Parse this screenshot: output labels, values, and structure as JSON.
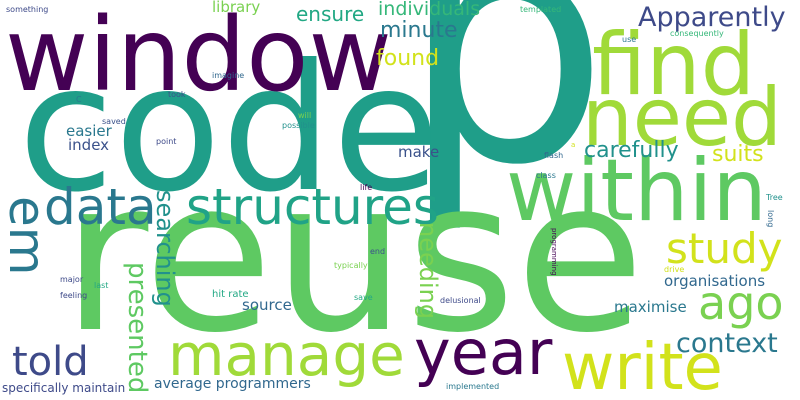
{
  "words": [
    {
      "text": "p",
      "color": "#1f9e89"
    },
    {
      "text": "code",
      "color": "#1f9e89"
    },
    {
      "text": "reuse",
      "color": "#5ec962"
    },
    {
      "text": "window",
      "color": "#440154"
    },
    {
      "text": "find",
      "color": "#a0da39"
    },
    {
      "text": "need",
      "color": "#a0da39"
    },
    {
      "text": "within",
      "color": "#5ec962"
    },
    {
      "text": "data",
      "color": "#2a788e"
    },
    {
      "text": "structures",
      "color": "#20a387"
    },
    {
      "text": "manage",
      "color": "#a0da39"
    },
    {
      "text": "year",
      "color": "#440154"
    },
    {
      "text": "write",
      "color": "#d2e21b"
    },
    {
      "text": "em",
      "color": "#2a788e"
    },
    {
      "text": "study",
      "color": "#d2e21b"
    },
    {
      "text": "ago",
      "color": "#7ad151"
    },
    {
      "text": "told",
      "color": "#3e4a89"
    },
    {
      "text": "Apparently",
      "color": "#3e4a89"
    },
    {
      "text": "context",
      "color": "#2a788e"
    },
    {
      "text": "carefully",
      "color": "#21918c"
    },
    {
      "text": "suits",
      "color": "#d2e21b"
    },
    {
      "text": "presented",
      "color": "#5ec962"
    },
    {
      "text": "searching",
      "color": "#21918c"
    },
    {
      "text": "needing",
      "color": "#7ad151"
    },
    {
      "text": "minute",
      "color": "#2a788e"
    },
    {
      "text": "found",
      "color": "#d2e21b"
    },
    {
      "text": "individuals",
      "color": "#35b779"
    },
    {
      "text": "ensure",
      "color": "#22a884"
    },
    {
      "text": "library",
      "color": "#7ad151"
    },
    {
      "text": "organisations",
      "color": "#31688e"
    },
    {
      "text": "maximise",
      "color": "#2a788e"
    },
    {
      "text": "source",
      "color": "#31688e"
    },
    {
      "text": "make",
      "color": "#3b528b"
    },
    {
      "text": "easier",
      "color": "#2a788e"
    },
    {
      "text": "index",
      "color": "#3b528b"
    },
    {
      "text": "average programmers",
      "color": "#31688e"
    },
    {
      "text": "specifically maintain",
      "color": "#3e4a89"
    },
    {
      "text": "hit rate",
      "color": "#22a884"
    },
    {
      "text": "delusional",
      "color": "#3e4a89"
    },
    {
      "text": "implemented",
      "color": "#2a788e"
    },
    {
      "text": "something",
      "color": "#3e4a89"
    },
    {
      "text": "templated",
      "color": "#35b779"
    },
    {
      "text": "consequently",
      "color": "#35b779"
    },
    {
      "text": "use",
      "color": "#2a788e"
    },
    {
      "text": "imagine",
      "color": "#31688e"
    },
    {
      "text": "took",
      "color": "#3b528b"
    },
    {
      "text": "saved",
      "color": "#3b528b"
    },
    {
      "text": "point",
      "color": "#3e4a89"
    },
    {
      "text": "will",
      "color": "#7ad151"
    },
    {
      "text": "possible",
      "color": "#21918c"
    },
    {
      "text": "flash",
      "color": "#31688e"
    },
    {
      "text": "class",
      "color": "#2a788e"
    },
    {
      "text": "Tree",
      "color": "#21918c"
    },
    {
      "text": "long",
      "color": "#31688e"
    },
    {
      "text": "life",
      "color": "#440154"
    },
    {
      "text": "end",
      "color": "#3b528b"
    },
    {
      "text": "typically",
      "color": "#7ad151"
    },
    {
      "text": "major",
      "color": "#3e4a89"
    },
    {
      "text": "last",
      "color": "#22a884"
    },
    {
      "text": "save",
      "color": "#22a884"
    },
    {
      "text": "feeling",
      "color": "#3e4a89"
    },
    {
      "text": "programming",
      "color": "#440154"
    },
    {
      "text": "drive",
      "color": "#d2e21b"
    },
    {
      "text": "C",
      "color": "#2a788e"
    },
    {
      "text": "a",
      "color": "#d2e21b"
    }
  ]
}
